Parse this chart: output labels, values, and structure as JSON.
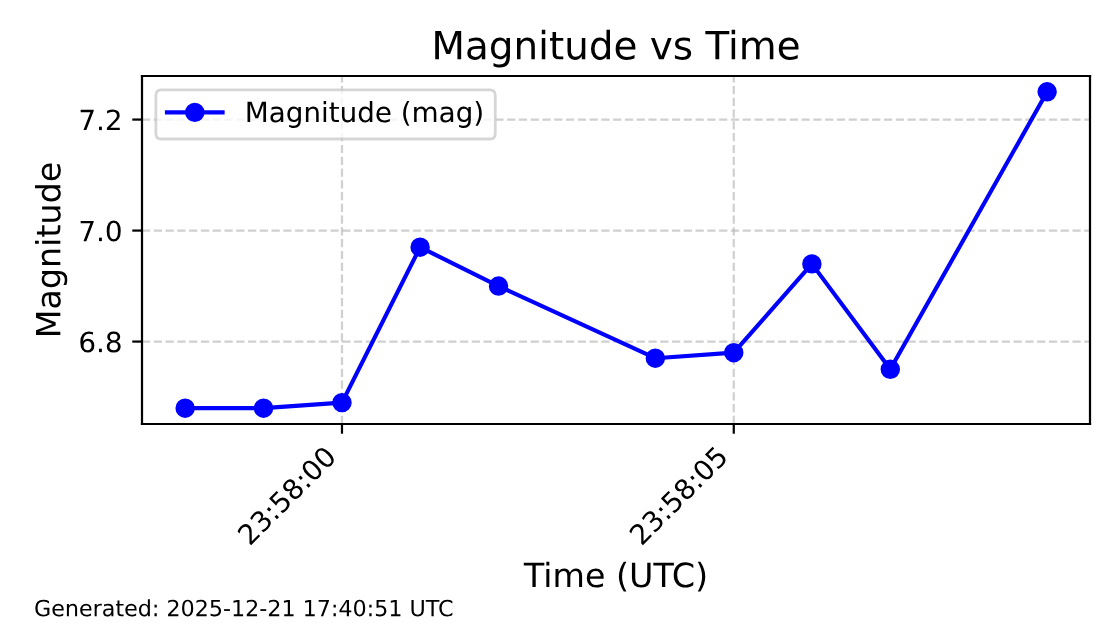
{
  "chart_data": {
    "type": "line",
    "title": "Magnitude vs Time",
    "xlabel": "Time (UTC)",
    "ylabel": "Magnitude",
    "x": [
      23.966111,
      23.966389,
      23.966667,
      23.966944,
      23.967222,
      23.967778,
      23.968056,
      23.968333,
      23.968611,
      23.969167
    ],
    "series": [
      {
        "name": "Magnitude (mag)",
        "color": "#0000ff",
        "values": [
          6.68,
          6.68,
          6.69,
          6.97,
          6.9,
          6.77,
          6.78,
          6.94,
          6.75,
          7.25
        ]
      }
    ],
    "xlim": [
      23.965958,
      23.969319
    ],
    "xticks": [
      {
        "value": 23.966667,
        "label": "23:58:00"
      },
      {
        "value": 23.968056,
        "label": "23:58:05"
      }
    ],
    "ylim": [
      6.6515,
      7.2785
    ],
    "yticks": [
      {
        "value": 6.8,
        "label": "6.8"
      },
      {
        "value": 7.0,
        "label": "7.0"
      },
      {
        "value": 7.2,
        "label": "7.2"
      }
    ],
    "grid": true,
    "legend": "top left",
    "marker": "circle",
    "line_style": "solid",
    "annotations": [
      "Generated: 2025-12-21 17:40:51 UTC"
    ]
  }
}
